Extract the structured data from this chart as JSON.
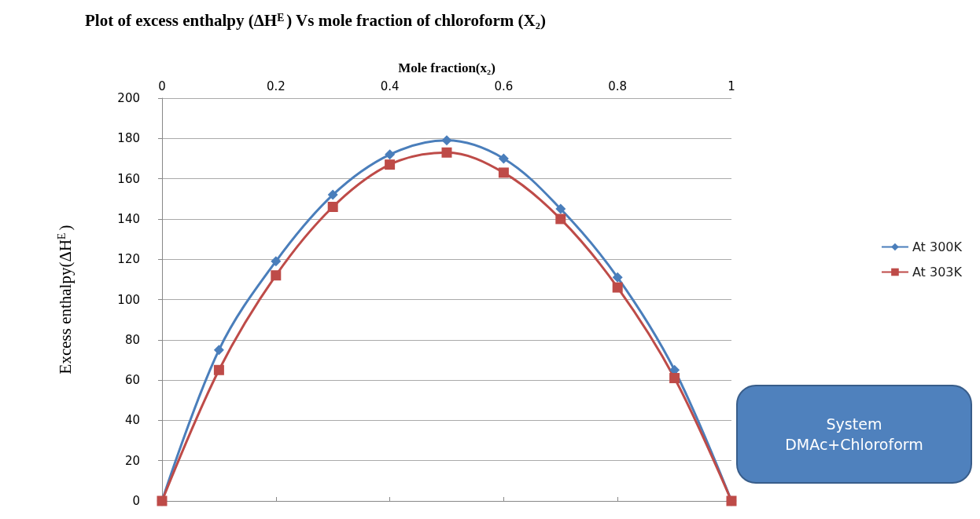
{
  "chart_data": {
    "type": "line",
    "title": "Plot of excess enthalpy (ΔH$^{E}$) Vs mole fraction of chloroform (X₂)",
    "xlabel": "Mole fraction(x₂)",
    "ylabel": "Excess enthalpy(ΔH$^{E}$)",
    "x": [
      0,
      0.1,
      0.2,
      0.3,
      0.4,
      0.5,
      0.6,
      0.7,
      0.8,
      0.9,
      1
    ],
    "series": [
      {
        "name": "At 300K",
        "color": "#4a7ebb",
        "marker": "diamond",
        "values": [
          0,
          75,
          119,
          152,
          172,
          179,
          170,
          145,
          111,
          65,
          0
        ]
      },
      {
        "name": "At 303K",
        "color": "#be4b48",
        "marker": "square",
        "values": [
          0,
          65,
          112,
          146,
          167,
          173,
          163,
          140,
          106,
          61,
          0
        ]
      }
    ],
    "xlim": [
      0,
      1
    ],
    "xticks": [
      0,
      0.2,
      0.4,
      0.6,
      0.8,
      1
    ],
    "ylim": [
      0,
      200
    ],
    "yticks": [
      0,
      20,
      40,
      60,
      80,
      100,
      120,
      140,
      160,
      180,
      200
    ],
    "grid": "y",
    "legend": "right",
    "annotations": [
      "System\nDMAc+Chloroform"
    ]
  }
}
